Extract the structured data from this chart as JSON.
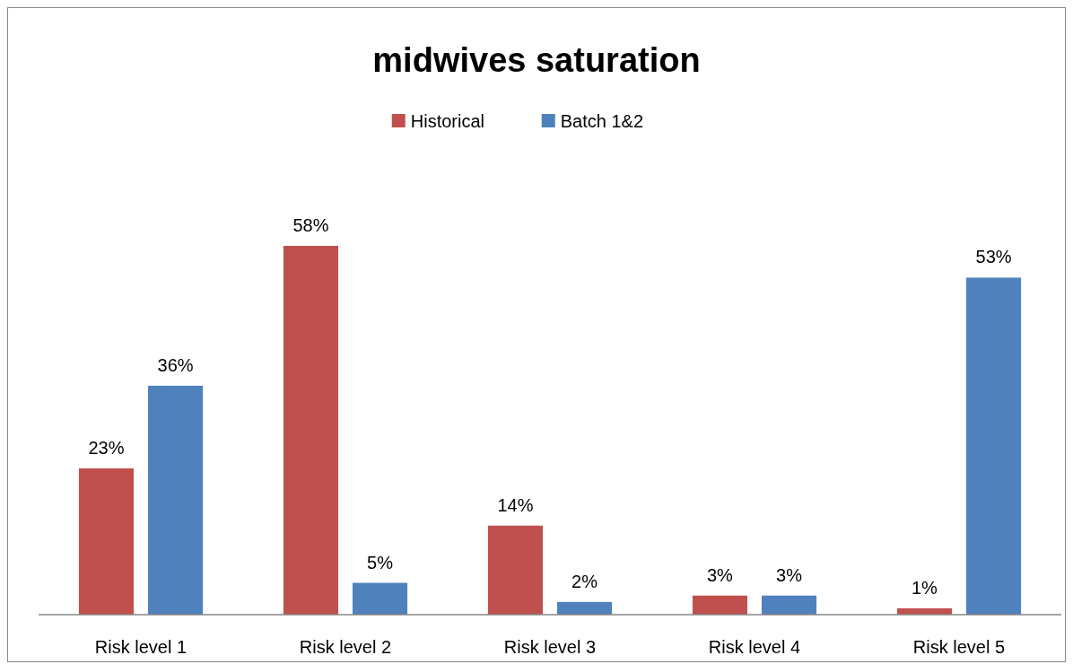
{
  "chart_data": {
    "type": "bar",
    "title": "midwives saturation",
    "categories": [
      "Risk level 1",
      "Risk level 2",
      "Risk level 3",
      "Risk level 4",
      "Risk level 5"
    ],
    "series": [
      {
        "name": "Historical",
        "color": "#c0504d",
        "values": [
          23,
          58,
          14,
          3,
          1
        ],
        "value_labels": [
          "23%",
          "58%",
          "14%",
          "3%",
          "1%"
        ]
      },
      {
        "name": "Batch 1&2",
        "color": "#4f81bd",
        "values": [
          36,
          5,
          2,
          3,
          53
        ],
        "value_labels": [
          "36%",
          "5%",
          "2%",
          "3%",
          "53%"
        ]
      }
    ],
    "legend": "top"
  }
}
